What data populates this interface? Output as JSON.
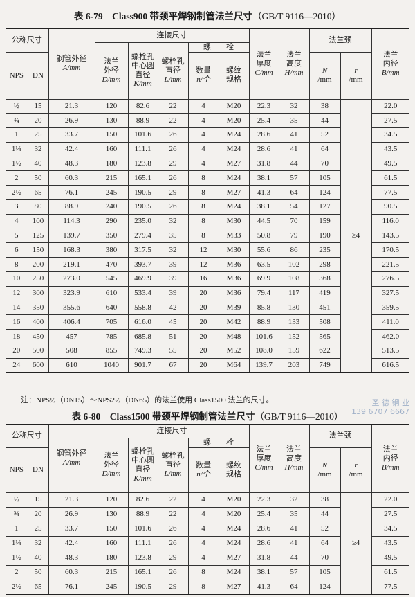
{
  "table1": {
    "title": "表 6-79　Class900 带颈平焊钢制管法兰尺寸",
    "standard": "（GB/T 9116—2010）",
    "rows": [
      [
        "½",
        "15",
        "21.3",
        "120",
        "82.6",
        "22",
        "4",
        "M20",
        "22.3",
        "32",
        "38",
        "22.0"
      ],
      [
        "¾",
        "20",
        "26.9",
        "130",
        "88.9",
        "22",
        "4",
        "M20",
        "25.4",
        "35",
        "44",
        "27.5"
      ],
      [
        "1",
        "25",
        "33.7",
        "150",
        "101.6",
        "26",
        "4",
        "M24",
        "28.6",
        "41",
        "52",
        "34.5"
      ],
      [
        "1¼",
        "32",
        "42.4",
        "160",
        "111.1",
        "26",
        "4",
        "M24",
        "28.6",
        "41",
        "64",
        "43.5"
      ],
      [
        "1½",
        "40",
        "48.3",
        "180",
        "123.8",
        "29",
        "4",
        "M27",
        "31.8",
        "44",
        "70",
        "49.5"
      ],
      [
        "2",
        "50",
        "60.3",
        "215",
        "165.1",
        "26",
        "8",
        "M24",
        "38.1",
        "57",
        "105",
        "61.5"
      ],
      [
        "2½",
        "65",
        "76.1",
        "245",
        "190.5",
        "29",
        "8",
        "M27",
        "41.3",
        "64",
        "124",
        "77.5"
      ],
      [
        "3",
        "80",
        "88.9",
        "240",
        "190.5",
        "26",
        "8",
        "M24",
        "38.1",
        "54",
        "127",
        "90.5"
      ],
      [
        "4",
        "100",
        "114.3",
        "290",
        "235.0",
        "32",
        "8",
        "M30",
        "44.5",
        "70",
        "159",
        "116.0"
      ],
      [
        "5",
        "125",
        "139.7",
        "350",
        "279.4",
        "35",
        "8",
        "M33",
        "50.8",
        "79",
        "190",
        "143.5"
      ],
      [
        "6",
        "150",
        "168.3",
        "380",
        "317.5",
        "32",
        "12",
        "M30",
        "55.6",
        "86",
        "235",
        "170.5"
      ],
      [
        "8",
        "200",
        "219.1",
        "470",
        "393.7",
        "39",
        "12",
        "M36",
        "63.5",
        "102",
        "298",
        "221.5"
      ],
      [
        "10",
        "250",
        "273.0",
        "545",
        "469.9",
        "39",
        "16",
        "M36",
        "69.9",
        "108",
        "368",
        "276.5"
      ],
      [
        "12",
        "300",
        "323.9",
        "610",
        "533.4",
        "39",
        "20",
        "M36",
        "79.4",
        "117",
        "419",
        "327.5"
      ],
      [
        "14",
        "350",
        "355.6",
        "640",
        "558.8",
        "42",
        "20",
        "M39",
        "85.8",
        "130",
        "451",
        "359.5"
      ],
      [
        "16",
        "400",
        "406.4",
        "705",
        "616.0",
        "45",
        "20",
        "M42",
        "88.9",
        "133",
        "508",
        "411.0"
      ],
      [
        "18",
        "450",
        "457",
        "785",
        "685.8",
        "51",
        "20",
        "M48",
        "101.6",
        "152",
        "565",
        "462.0"
      ],
      [
        "20",
        "500",
        "508",
        "855",
        "749.3",
        "55",
        "20",
        "M52",
        "108.0",
        "159",
        "622",
        "513.5"
      ],
      [
        "24",
        "600",
        "610",
        "1040",
        "901.7",
        "67",
        "20",
        "M64",
        "139.7",
        "203",
        "749",
        "616.5"
      ]
    ],
    "r_value": "≥4",
    "note": "注：NPS½（DN15）～NPS2½（DN65）的法兰使用 Class1500 法兰的尺寸。"
  },
  "table2": {
    "title": "表 6-80　Class1500 带颈平焊钢制管法兰尺寸",
    "standard": "（GB/T 9116—2010）",
    "rows": [
      [
        "½",
        "15",
        "21.3",
        "120",
        "82.6",
        "22",
        "4",
        "M20",
        "22.3",
        "32",
        "38",
        "22.0"
      ],
      [
        "¾",
        "20",
        "26.9",
        "130",
        "88.9",
        "22",
        "4",
        "M20",
        "25.4",
        "35",
        "44",
        "27.5"
      ],
      [
        "1",
        "25",
        "33.7",
        "150",
        "101.6",
        "26",
        "4",
        "M24",
        "28.6",
        "41",
        "52",
        "34.5"
      ],
      [
        "1¼",
        "32",
        "42.4",
        "160",
        "111.1",
        "26",
        "4",
        "M24",
        "28.6",
        "41",
        "64",
        "43.5"
      ],
      [
        "1½",
        "40",
        "48.3",
        "180",
        "123.8",
        "29",
        "4",
        "M27",
        "31.8",
        "44",
        "70",
        "49.5"
      ],
      [
        "2",
        "50",
        "60.3",
        "215",
        "165.1",
        "26",
        "8",
        "M24",
        "38.1",
        "57",
        "105",
        "61.5"
      ],
      [
        "2½",
        "65",
        "76.1",
        "245",
        "190.5",
        "29",
        "8",
        "M27",
        "41.3",
        "64",
        "124",
        "77.5"
      ]
    ],
    "r_value": "≥4"
  },
  "headers": {
    "nominal": "公称尺寸",
    "nps": "NPS",
    "dn": "DN",
    "pipe_od": "钢管外径",
    "pipe_od_unit": "A/mm",
    "connection": "连接尺寸",
    "flange_od": "法兰外径",
    "flange_od_unit": "D/mm",
    "bolt_circle": "螺栓孔中心圆直径",
    "bolt_circle_unit": "K/mm",
    "bolt_hole": "螺栓孔直径",
    "bolt_hole_unit": "L/mm",
    "bolt": "螺　　栓",
    "qty": "数量",
    "qty_unit": "n/个",
    "thread": "螺纹规格",
    "thickness": "法兰厚度",
    "thickness_unit": "C/mm",
    "height": "法兰高度",
    "height_unit": "H/mm",
    "neck": "法兰颈",
    "n_head": "N",
    "n_unit": "/mm",
    "r_head": "r",
    "r_unit": "/mm",
    "bore": "法兰内径",
    "bore_unit": "B/mm"
  },
  "watermark": {
    "line1": "圣 德 钢 业",
    "line2": "139 6707 6667"
  }
}
